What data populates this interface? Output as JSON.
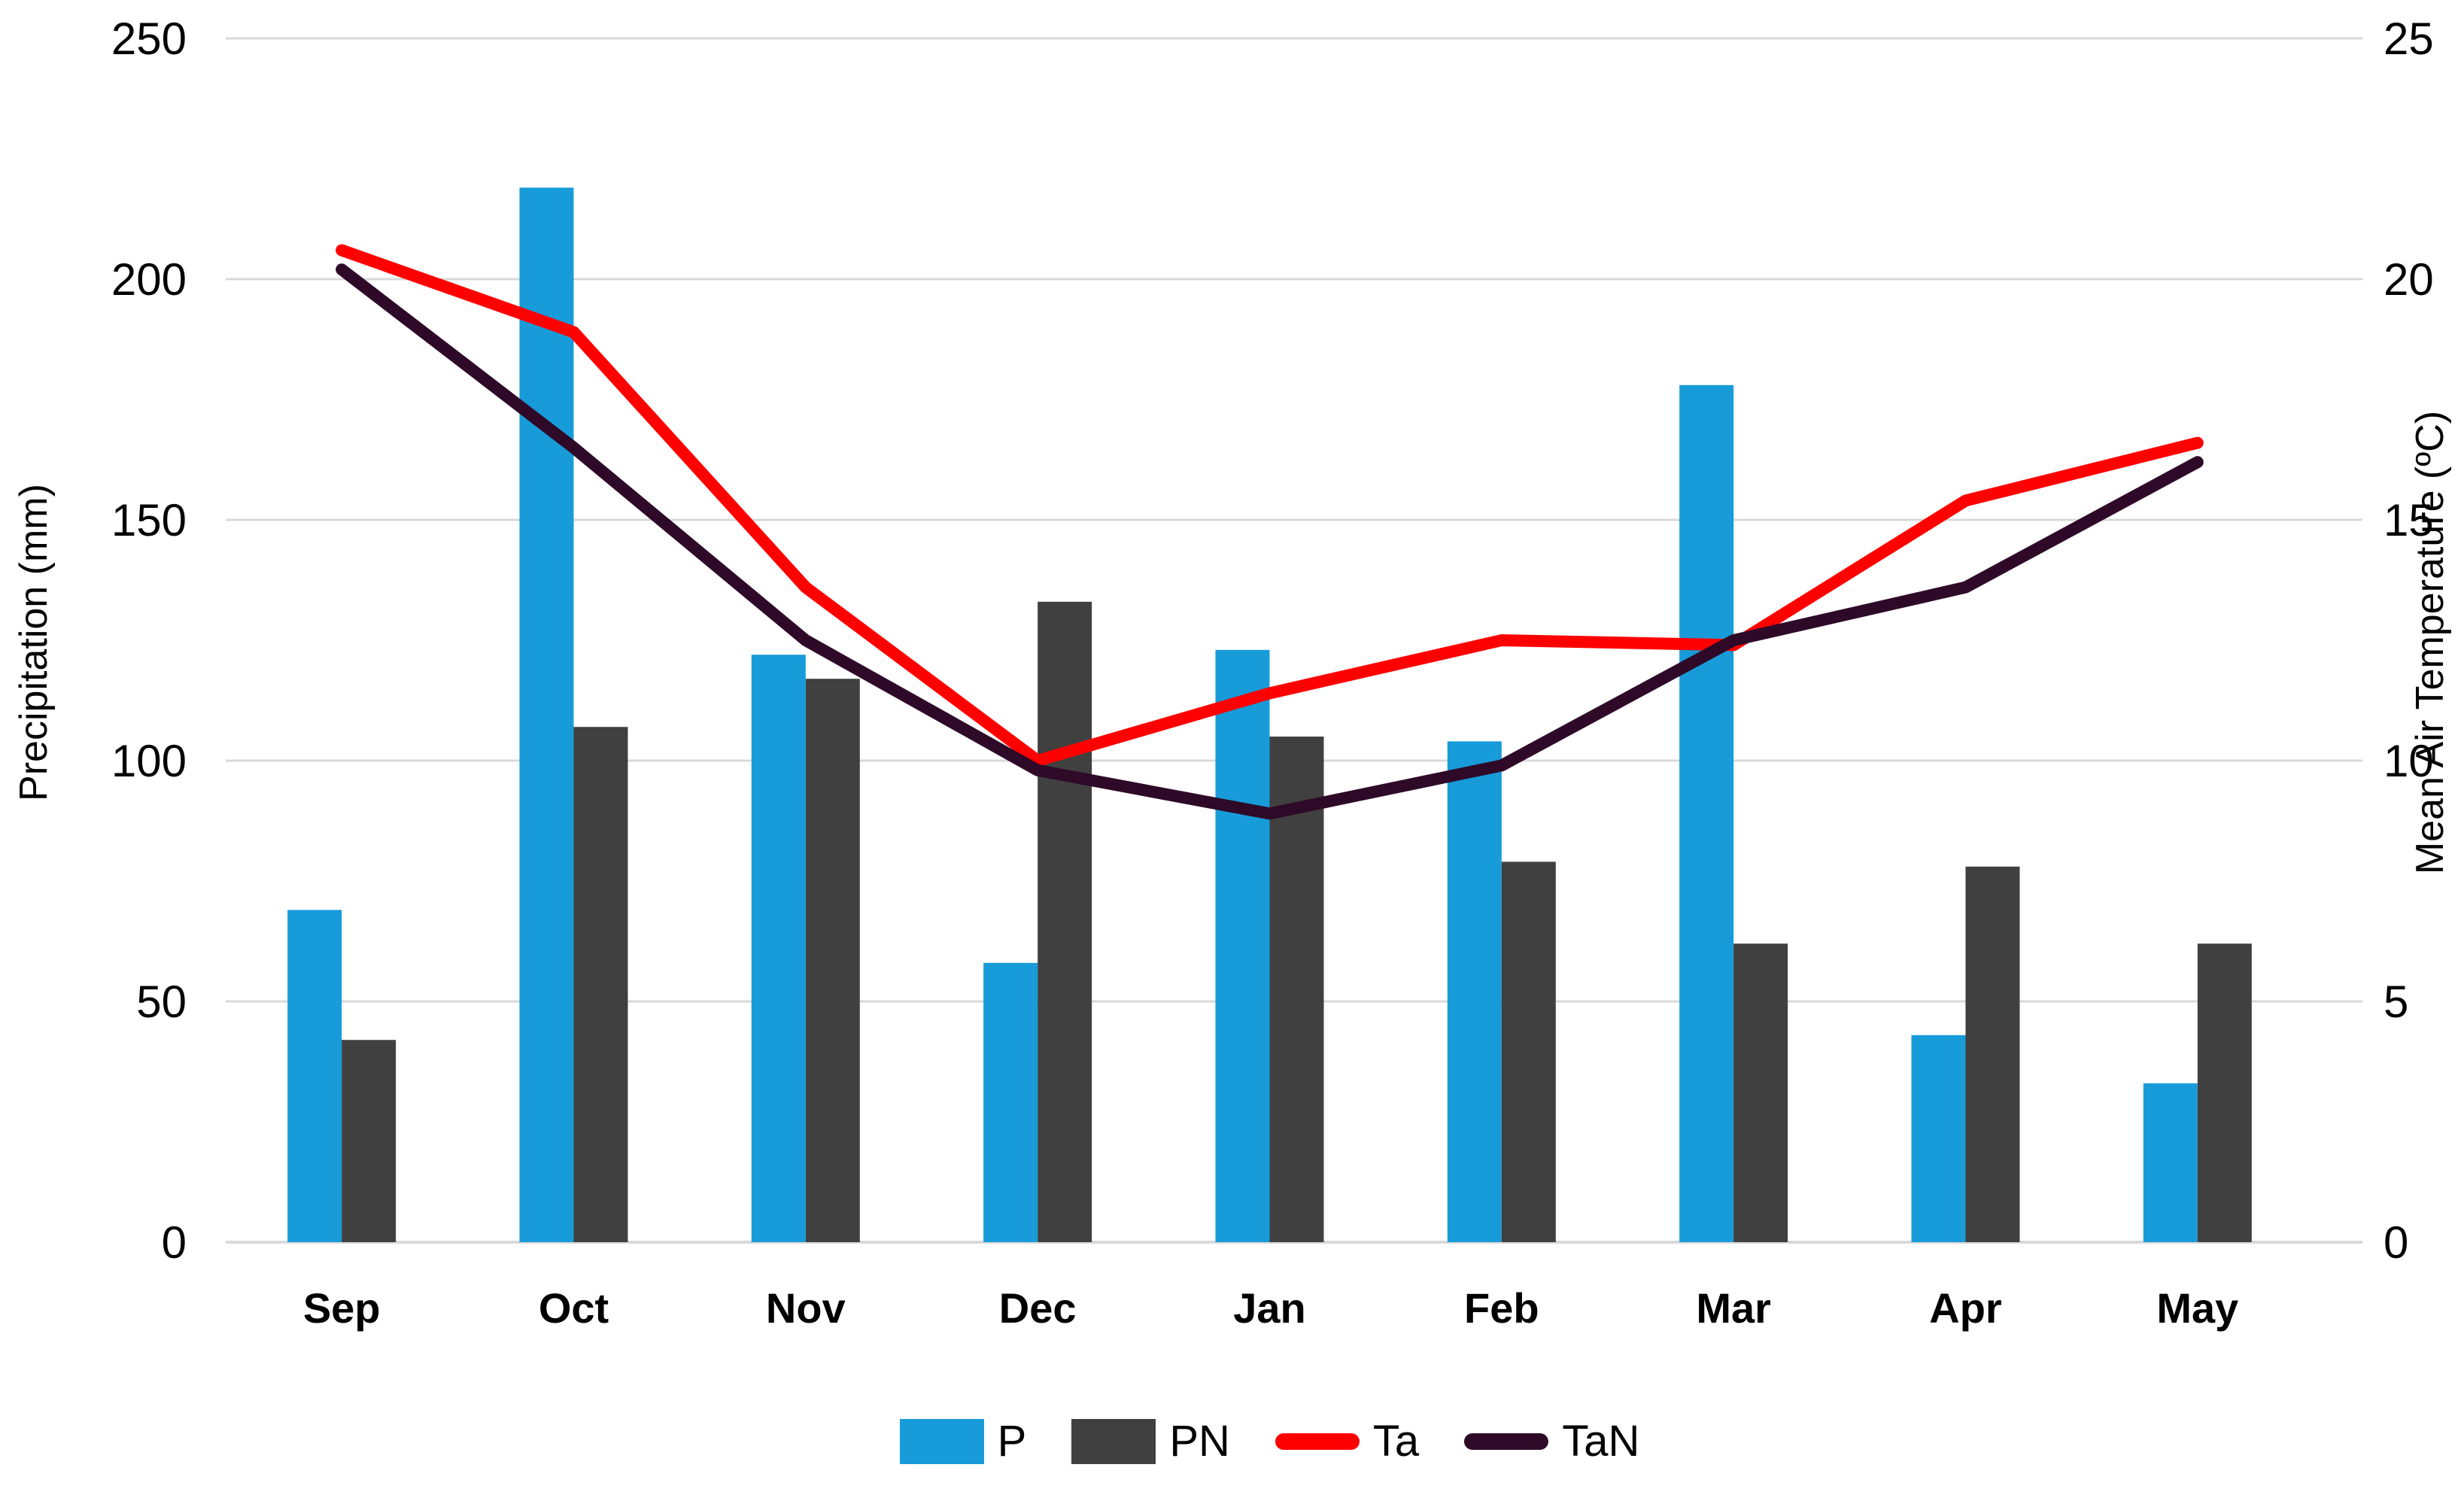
{
  "chart_data": {
    "type": "bar",
    "subtype": "combo-bar-line-dual-axis",
    "categories": [
      "Sep",
      "Oct",
      "Nov",
      "Dec",
      "Jan",
      "Feb",
      "Mar",
      "Apr",
      "May"
    ],
    "series": [
      {
        "name": "P",
        "kind": "bar",
        "axis": "left",
        "color": "#189BD9",
        "values": [
          69,
          219,
          122,
          58,
          123,
          104,
          178,
          43,
          33
        ]
      },
      {
        "name": "PN",
        "kind": "bar",
        "axis": "left",
        "color": "#404040",
        "values": [
          42,
          107,
          117,
          133,
          105,
          79,
          62,
          78,
          62
        ]
      },
      {
        "name": "Ta",
        "kind": "line",
        "axis": "right",
        "color": "#FE0000",
        "values": [
          20.6,
          18.9,
          13.6,
          10.0,
          11.4,
          12.5,
          12.4,
          15.4,
          16.6
        ]
      },
      {
        "name": "TaN",
        "kind": "line",
        "axis": "right",
        "color": "#2E0A28",
        "values": [
          20.2,
          16.5,
          12.5,
          9.8,
          8.9,
          9.9,
          12.5,
          13.6,
          16.2
        ]
      }
    ],
    "left_axis": {
      "title": "Precipitation (mm)",
      "min": 0,
      "max": 250,
      "ticks": [
        0,
        50,
        100,
        150,
        200,
        250
      ]
    },
    "right_axis": {
      "title": "Mean Air Temperature (ºC)",
      "min": 0,
      "max": 25,
      "ticks": [
        0,
        5,
        10,
        15,
        20,
        25
      ]
    },
    "grid": true,
    "gridline_color": "#D9D9D9",
    "text_color": "#000000",
    "background": "#FFFFFF",
    "legend_position": "bottom"
  },
  "legend": {
    "items": [
      {
        "label": "P"
      },
      {
        "label": "PN"
      },
      {
        "label": "Ta"
      },
      {
        "label": "TaN"
      }
    ]
  }
}
